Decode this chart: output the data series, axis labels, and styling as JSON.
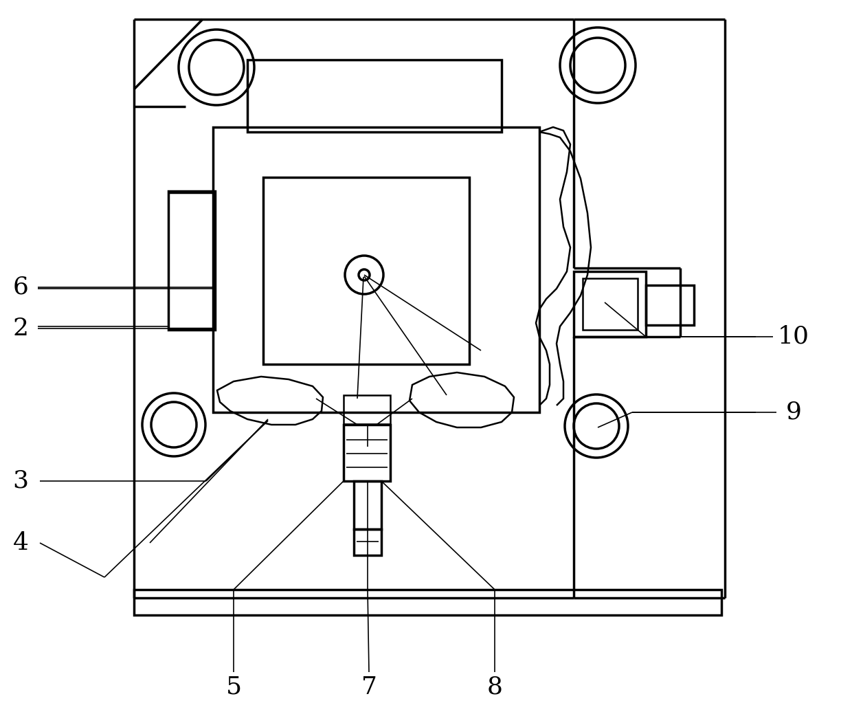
{
  "bg_color": "#ffffff",
  "line_color": "#000000",
  "fig_width": 12.4,
  "fig_height": 10.55,
  "lw_thick": 2.5,
  "lw_med": 1.8,
  "lw_thin": 1.2,
  "label_fontsize": 26
}
